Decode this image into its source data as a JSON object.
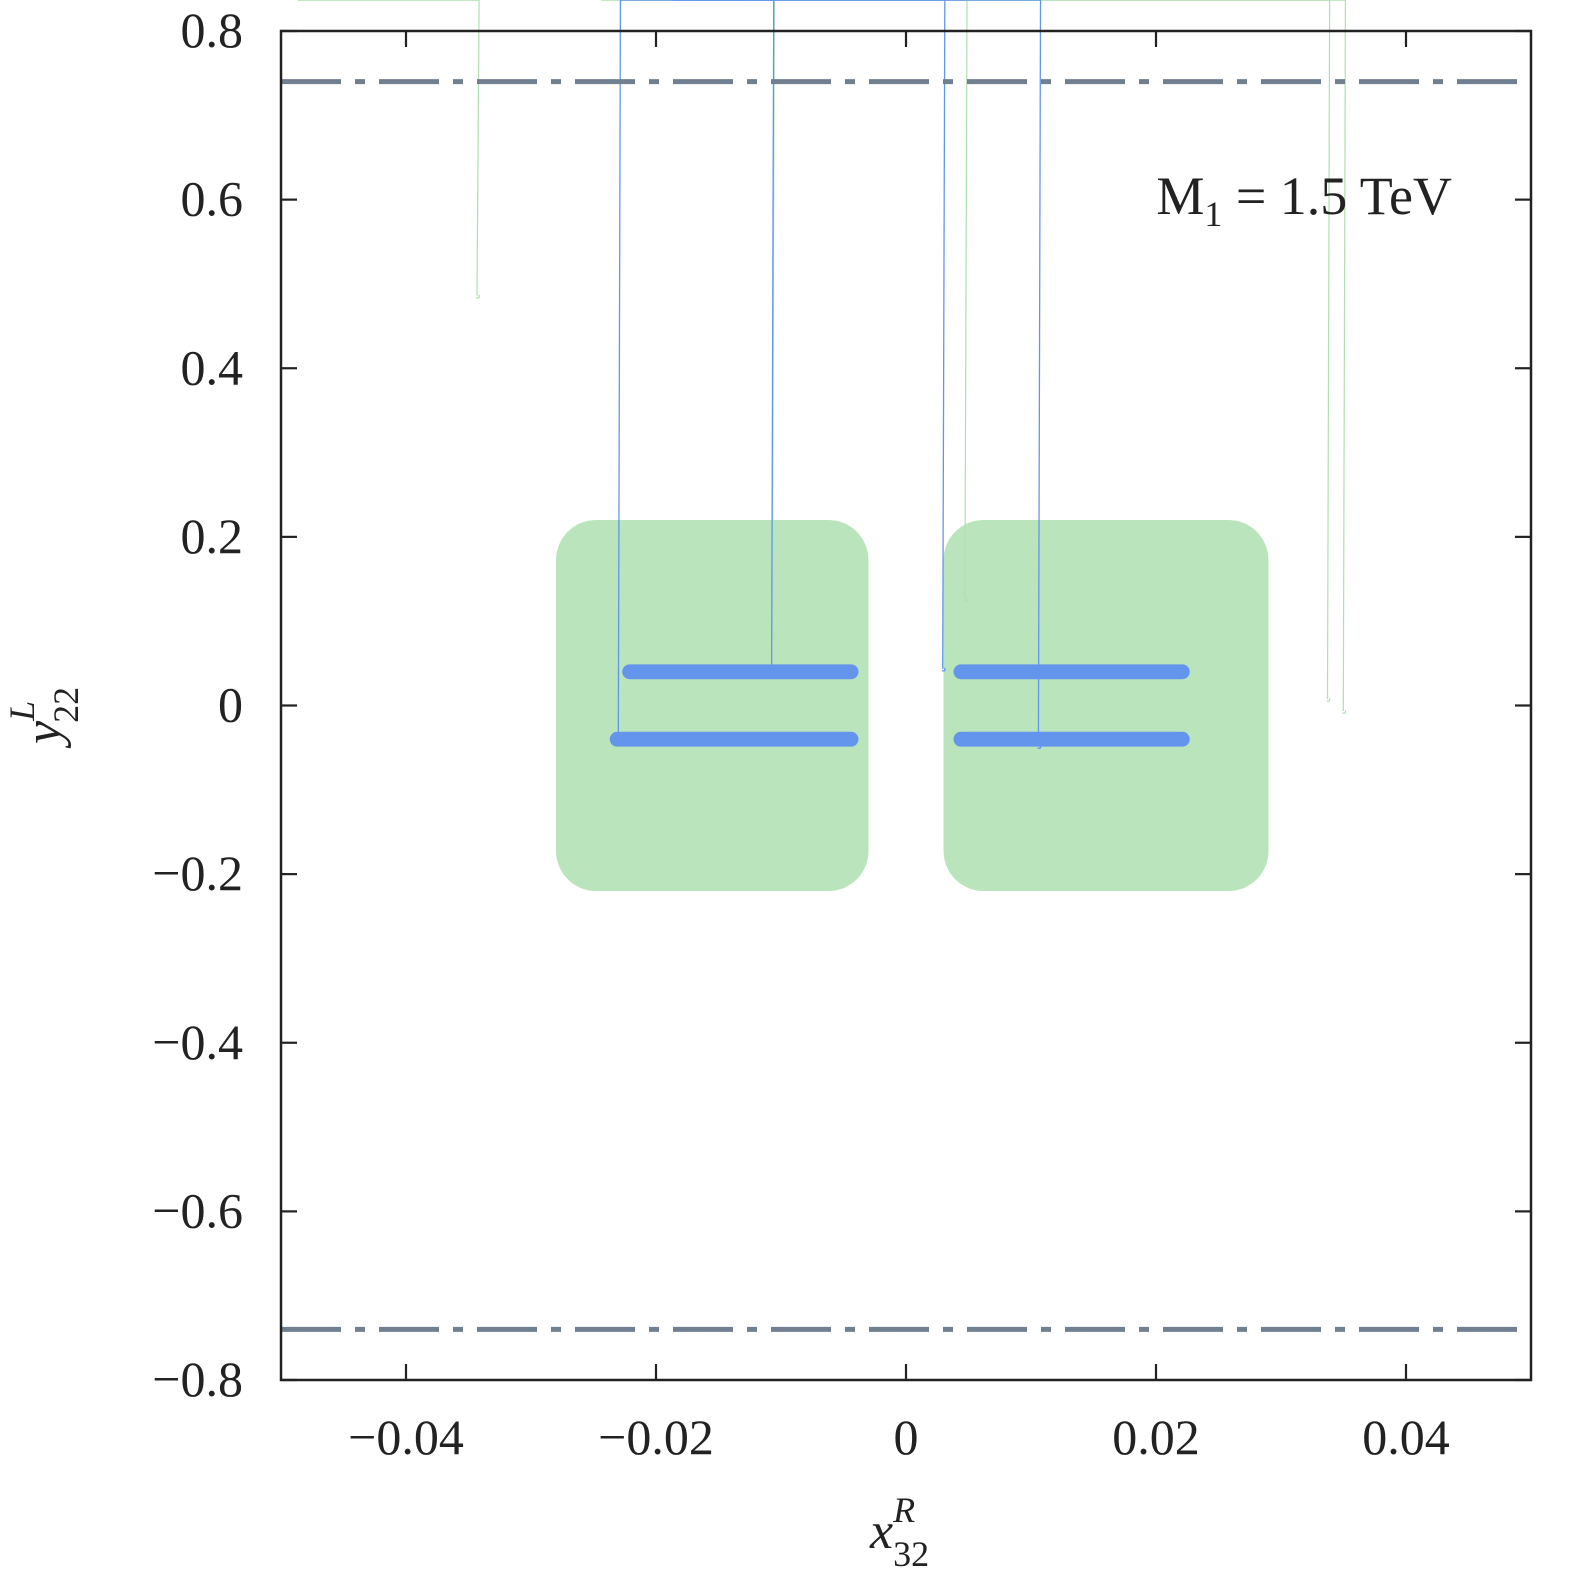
{
  "chart_data": {
    "type": "scatter",
    "title": "",
    "annotation": {
      "main": "M",
      "sub": "1",
      "rest": " = 1.5 TeV"
    },
    "xlabel": {
      "main": "x",
      "sup": "R",
      "sub": "32"
    },
    "ylabel": {
      "main": "y",
      "sup": "L",
      "sub": "22"
    },
    "xlim": [
      -0.05,
      0.05
    ],
    "ylim": [
      -0.8,
      0.8
    ],
    "x_ticks": [
      -0.04,
      -0.02,
      0,
      0.02,
      0.04
    ],
    "x_tick_labels": [
      "−0.04",
      "−0.02",
      "0",
      "0.02",
      "0.04"
    ],
    "y_ticks": [
      -0.8,
      -0.6,
      -0.4,
      -0.2,
      0,
      0.2,
      0.4,
      0.6,
      0.8
    ],
    "y_tick_labels": [
      "−0.8",
      "−0.6",
      "−0.4",
      "−0.2",
      "0",
      "0.2",
      "0.4",
      "0.6",
      "0.8"
    ],
    "grid": false,
    "series": [
      {
        "color": "#aee0b0",
        "marker": "asterisk",
        "description_of_distribution": "dense cloud",
        "regions": [
          {
            "x_range": [
              -0.0485,
              -0.0035
            ],
            "y_range": [
              -0.5,
              0.5
            ]
          },
          {
            "x_range": [
              0.0035,
              0.0495
            ],
            "y_range": [
              -0.5,
              0.5
            ]
          }
        ],
        "core_regions": [
          {
            "x_range": [
              -0.028,
              -0.003
            ],
            "y_range": [
              -0.22,
              0.22
            ]
          },
          {
            "x_range": [
              0.003,
              0.029
            ],
            "y_range": [
              -0.22,
              0.22
            ]
          }
        ],
        "center_band": {
          "x_range": [
            -0.05,
            0.05
          ],
          "y_range": [
            -0.015,
            0.015
          ]
        }
      },
      {
        "color": "#6495ed",
        "marker": "asterisk",
        "bands": [
          {
            "x_range": [
              -0.0235,
              -0.003
            ],
            "y_center": 0.04,
            "half_height": 0.011
          },
          {
            "x_range": [
              -0.0245,
              -0.003
            ],
            "y_center": -0.04,
            "half_height": 0.011
          },
          {
            "x_range": [
              0.003,
              0.0235
            ],
            "y_center": 0.04,
            "half_height": 0.011
          },
          {
            "x_range": [
              0.003,
              0.0235
            ],
            "y_center": -0.04,
            "half_height": 0.011
          }
        ]
      }
    ],
    "reference_lines": [
      {
        "orientation": "horizontal",
        "y": 0.74,
        "style": "dash-dot",
        "color": "#708090"
      },
      {
        "orientation": "horizontal",
        "y": -0.74,
        "style": "dash-dot",
        "color": "#708090"
      }
    ]
  }
}
